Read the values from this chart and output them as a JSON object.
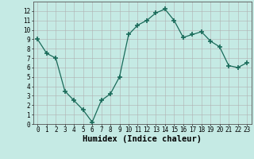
{
  "x": [
    0,
    1,
    2,
    3,
    4,
    5,
    6,
    7,
    8,
    9,
    10,
    11,
    12,
    13,
    14,
    15,
    16,
    17,
    18,
    19,
    20,
    21,
    22,
    23
  ],
  "y": [
    9,
    7.5,
    7,
    3.5,
    2.5,
    1.5,
    0.2,
    2.5,
    3.2,
    5,
    9.5,
    10.5,
    11,
    11.8,
    12.2,
    11,
    9.2,
    9.5,
    9.8,
    8.8,
    8.2,
    6.2,
    6,
    6.5
  ],
  "line_color": "#1a6b5a",
  "marker": "+",
  "marker_size": 4,
  "bg_color": "#c5eae4",
  "grid_color": "#b0b0b0",
  "xlabel": "Humidex (Indice chaleur)",
  "xlim": [
    -0.5,
    23.5
  ],
  "ylim": [
    0,
    13
  ],
  "xticks": [
    0,
    1,
    2,
    3,
    4,
    5,
    6,
    7,
    8,
    9,
    10,
    11,
    12,
    13,
    14,
    15,
    16,
    17,
    18,
    19,
    20,
    21,
    22,
    23
  ],
  "yticks": [
    0,
    1,
    2,
    3,
    4,
    5,
    6,
    7,
    8,
    9,
    10,
    11,
    12
  ],
  "tick_fontsize": 5.5,
  "xlabel_fontsize": 7.5
}
